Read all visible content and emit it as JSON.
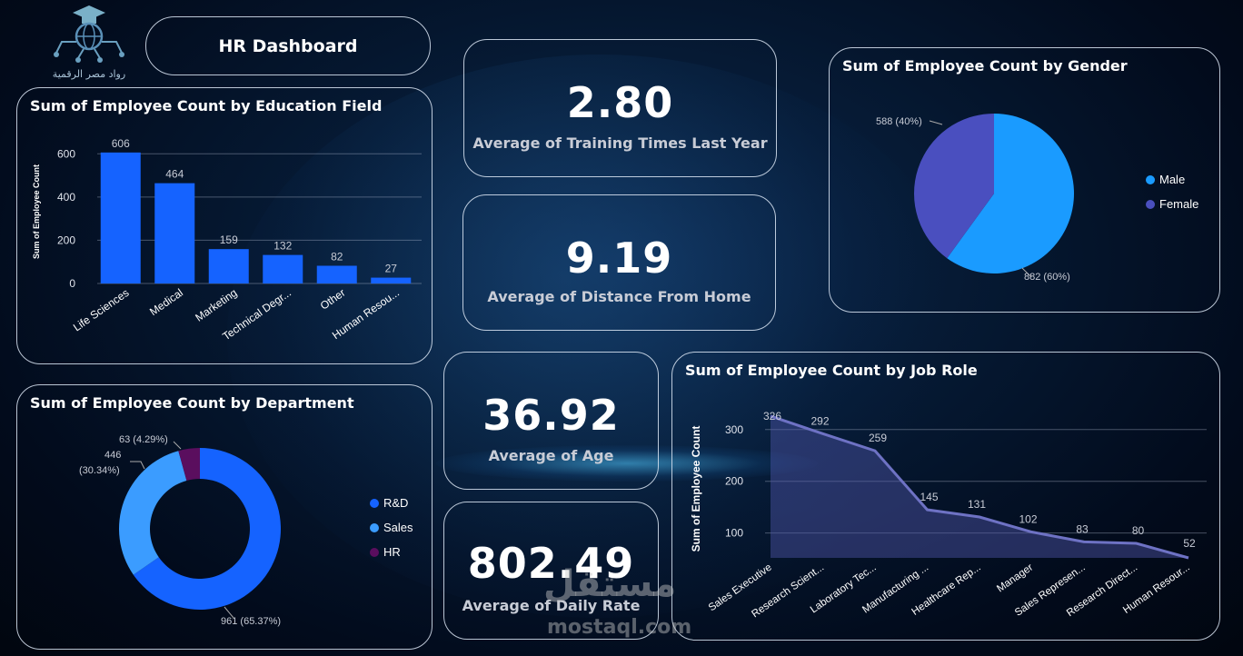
{
  "header": {
    "title": "HR Dashboard",
    "logo_caption": "رواد مصر الرقمية"
  },
  "kpis": [
    {
      "value": "2.80",
      "label": "Average of Training Times Last Year"
    },
    {
      "value": "9.19",
      "label": "Average of Distance From Home"
    },
    {
      "value": "36.92",
      "label": "Average of Age"
    },
    {
      "value": "802.49",
      "label": "Average of Daily Rate"
    }
  ],
  "panels": {
    "education": "Sum of Employee Count by Education Field",
    "gender": "Sum of Employee Count by Gender",
    "department": "Sum of Employee Count by Department",
    "jobrole": "Sum of Employee Count by Job Role"
  },
  "watermark": {
    "arabic": "مستقل",
    "latin": "mostaql.com"
  },
  "colors": {
    "blue": "#1563ff",
    "light_blue": "#1a9bff",
    "indigo": "#4a4fbf",
    "purple": "#5a0e5e",
    "sales_blue": "#3b9cff",
    "line": "#6e72c4"
  },
  "chart_data": [
    {
      "id": "education",
      "type": "bar",
      "ylabel": "Sum of Employee Count",
      "categories": [
        "Life Sciences",
        "Medical",
        "Marketing",
        "Technical Degr...",
        "Other",
        "Human Resou..."
      ],
      "values": [
        606,
        464,
        159,
        132,
        82,
        27
      ],
      "yticks": [
        0,
        200,
        400,
        600
      ],
      "ylim": [
        0,
        660
      ],
      "grid": true
    },
    {
      "id": "gender",
      "type": "pie",
      "slices": [
        {
          "name": "Male",
          "value": 882,
          "label": "882 (60%)",
          "color": "#1a9bff"
        },
        {
          "name": "Female",
          "value": 588,
          "label": "588 (40%)",
          "color": "#4a4fbf"
        }
      ],
      "legend": "right"
    },
    {
      "id": "department",
      "type": "pie",
      "donut": true,
      "slices": [
        {
          "name": "R&D",
          "value": 961,
          "label": "961 (65.37%)",
          "color": "#1563ff"
        },
        {
          "name": "Sales",
          "value": 446,
          "label": "446\n(30.34%)",
          "color": "#3b9cff"
        },
        {
          "name": "HR",
          "value": 63,
          "label": "63 (4.29%)",
          "color": "#5a0e5e"
        }
      ],
      "legend": "right"
    },
    {
      "id": "jobrole",
      "type": "area",
      "ylabel": "Sum of Employee Count",
      "categories": [
        "Sales Executive",
        "Research Scient...",
        "Laboratory Tec...",
        "Manufacturing ...",
        "Healthcare Rep...",
        "Manager",
        "Sales Represen...",
        "Research Direct...",
        "Human Resour..."
      ],
      "values": [
        326,
        292,
        259,
        145,
        131,
        102,
        83,
        80,
        52
      ],
      "yticks": [
        100,
        200,
        300
      ],
      "ylim": [
        52,
        340
      ],
      "grid": true
    }
  ]
}
